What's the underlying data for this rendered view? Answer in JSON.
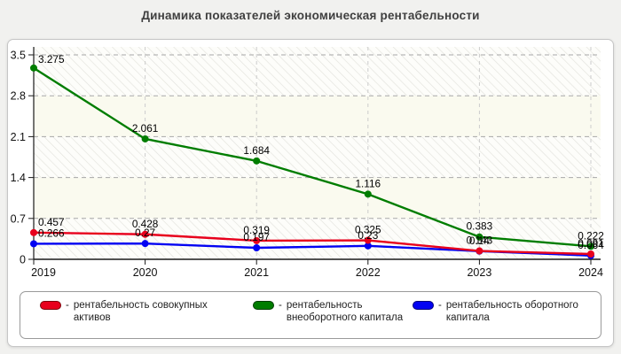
{
  "page": {
    "title": "Динамика показателей экономическая рентабельности"
  },
  "chart_data": {
    "type": "line",
    "title": "Динамика показателей экономическая рентабельности",
    "categories": [
      "2019",
      "2020",
      "2021",
      "2022",
      "2023",
      "2024"
    ],
    "series": [
      {
        "name": "рентабельность совокупных активов",
        "color": "#e8001c",
        "values": [
          0.457,
          0.428,
          0.319,
          0.325,
          0.143,
          0.091
        ],
        "point_labels": [
          "0.457",
          "0.428",
          "0.319",
          "0.325",
          "0.143",
          "0.091"
        ]
      },
      {
        "name": "рентабельность внеоборотного капитала",
        "color": "#007d00",
        "values": [
          3.275,
          2.061,
          1.684,
          1.116,
          0.383,
          0.222
        ],
        "point_labels": [
          "3.275",
          "2.061",
          "1.684",
          "1.116",
          "0.383",
          "0.222"
        ]
      },
      {
        "name": "рентабельность оборотного капитала",
        "color": "#0202f2",
        "values": [
          0.266,
          0.27,
          0.197,
          0.23,
          0.14,
          0.064
        ],
        "point_labels": [
          "0.266",
          "0.27",
          "0.197",
          "0.23",
          "0.14",
          "0.064"
        ]
      }
    ],
    "y_ticks": [
      "0",
      "0.7",
      "1.4",
      "2.1",
      "2.8",
      "3.5"
    ],
    "ylim": [
      0,
      3.5
    ],
    "grid": true,
    "legend_position": "bottom"
  },
  "legend": {
    "separator": "-",
    "items": [
      {
        "label": "рентабельность совокупных активов",
        "color": "#e8001c",
        "border_color": "#7a0008"
      },
      {
        "label": "рентабельность внеоборотного капитала",
        "color": "#007d00",
        "border_color": "#003c00"
      },
      {
        "label": "рентабельность оборотного капитала",
        "color": "#0202f2",
        "border_color": "#000078"
      }
    ]
  }
}
